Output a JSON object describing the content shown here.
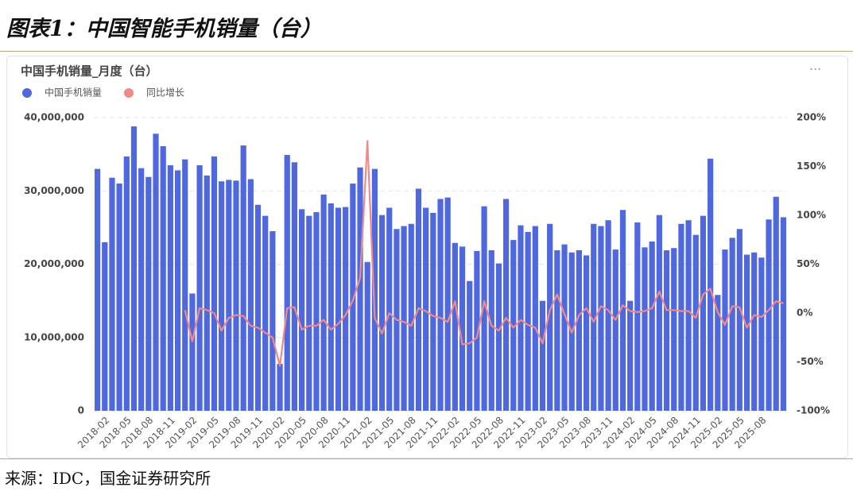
{
  "header": {
    "title": "图表1：中国智能手机销量（台）"
  },
  "chart_data": {
    "type": "bar-line",
    "title": "中国手机销量_月度（台）",
    "categories": [
      null,
      "2018-02",
      null,
      null,
      "2018-05",
      null,
      null,
      "2018-08",
      null,
      null,
      "2018-11",
      null,
      null,
      "2019-02",
      null,
      null,
      "2019-05",
      null,
      null,
      "2019-08",
      null,
      null,
      "2019-11",
      null,
      null,
      "2020-02",
      null,
      null,
      "2020-05",
      null,
      null,
      "2020-08",
      null,
      null,
      "2020-11",
      null,
      null,
      "2021-02",
      null,
      null,
      "2021-05",
      null,
      null,
      "2021-08",
      null,
      null,
      "2021-11",
      null,
      null,
      "2022-02",
      null,
      null,
      "2022-05",
      null,
      null,
      "2022-08",
      null,
      null,
      "2022-11",
      null,
      null,
      "2023-02",
      null,
      null,
      "2023-05",
      null,
      null,
      "2023-08",
      null,
      null,
      "2023-11",
      null,
      null,
      "2024-02",
      null,
      null,
      "2024-05",
      null,
      null,
      "2024-08",
      null,
      null,
      "2024-11",
      null,
      null,
      "2025-02",
      null,
      null,
      "2025-05",
      null,
      null,
      "2025-08",
      null,
      null,
      null
    ],
    "series": [
      {
        "name": "中国手机销量",
        "color": "#5068de",
        "kind": "bar",
        "values": [
          33000000,
          23000000,
          31800000,
          31000000,
          34700000,
          38800000,
          33100000,
          31900000,
          37800000,
          36100000,
          33500000,
          32800000,
          34300000,
          16000000,
          33500000,
          32100000,
          34700000,
          31300000,
          31500000,
          31400000,
          36200000,
          31600000,
          28100000,
          26600000,
          24500000,
          6400000,
          34900000,
          33900000,
          27500000,
          26600000,
          27100000,
          29500000,
          28300000,
          27700000,
          27800000,
          31000000,
          33200000,
          20300000,
          33000000,
          26700000,
          27700000,
          24800000,
          25200000,
          25500000,
          30300000,
          27700000,
          27000000,
          28900000,
          29100000,
          22900000,
          22400000,
          17700000,
          21800000,
          27900000,
          21900000,
          20100000,
          28900000,
          23300000,
          25300000,
          24400000,
          25200000,
          15000000,
          25500000,
          21900000,
          22700000,
          21600000,
          21900000,
          21200000,
          25500000,
          25200000,
          26000000,
          22000000,
          27400000,
          15000000,
          25700000,
          22300000,
          23100000,
          26700000,
          21900000,
          22200000,
          25500000,
          26000000,
          24000000,
          26600000,
          34400000,
          15800000,
          22000000,
          23600000,
          24800000,
          21300000,
          21600000,
          20900000,
          26100000,
          29200000,
          26400000
        ]
      },
      {
        "name": "同比增长",
        "color": "#f08a8a",
        "kind": "line",
        "axis": "y2",
        "values": [
          null,
          null,
          null,
          null,
          null,
          null,
          null,
          null,
          null,
          null,
          null,
          null,
          3,
          -29,
          5,
          3,
          0,
          -18,
          -5,
          -2,
          -3,
          -13,
          -15,
          -20,
          -25,
          -54,
          5,
          6,
          -17,
          -13,
          -13,
          -7,
          -17,
          -11,
          -2,
          13,
          36,
          176,
          -5,
          -21,
          0,
          -7,
          -9,
          -13,
          5,
          2,
          -3,
          -5,
          -9,
          12,
          -32,
          -31,
          -25,
          12,
          -13,
          -18,
          -5,
          -15,
          -7,
          -12,
          -15,
          -31,
          3,
          19,
          -1,
          -20,
          -2,
          5,
          -9,
          7,
          3,
          -7,
          8,
          2,
          1,
          2,
          5,
          22,
          3,
          3,
          2,
          2,
          -5,
          19,
          25,
          1,
          -12,
          7,
          6,
          -15,
          -2,
          -4,
          3,
          12,
          10
        ]
      }
    ],
    "ylim": [
      0,
      40000000
    ],
    "yticks": [
      0,
      {
        "value": 10000000,
        "label": "10,000,000"
      },
      {
        "value": 20000000,
        "label": "20,000,000"
      },
      {
        "value": 30000000,
        "label": "30,000,000"
      },
      {
        "value": 40000000,
        "label": "40,000,000"
      }
    ],
    "y2lim": [
      -100,
      200
    ],
    "y2ticks": [
      {
        "value": -100,
        "label": "-100%"
      },
      {
        "value": -50,
        "label": "-50%"
      },
      {
        "value": 0,
        "label": "0%"
      },
      {
        "value": 50,
        "label": "50%"
      },
      {
        "value": 100,
        "label": "100%"
      },
      {
        "value": 150,
        "label": "150%"
      },
      {
        "value": 200,
        "label": "200%"
      }
    ],
    "grid": true,
    "legend": "top-left"
  },
  "footer": {
    "source": "来源：IDC，国金证券研究所"
  }
}
